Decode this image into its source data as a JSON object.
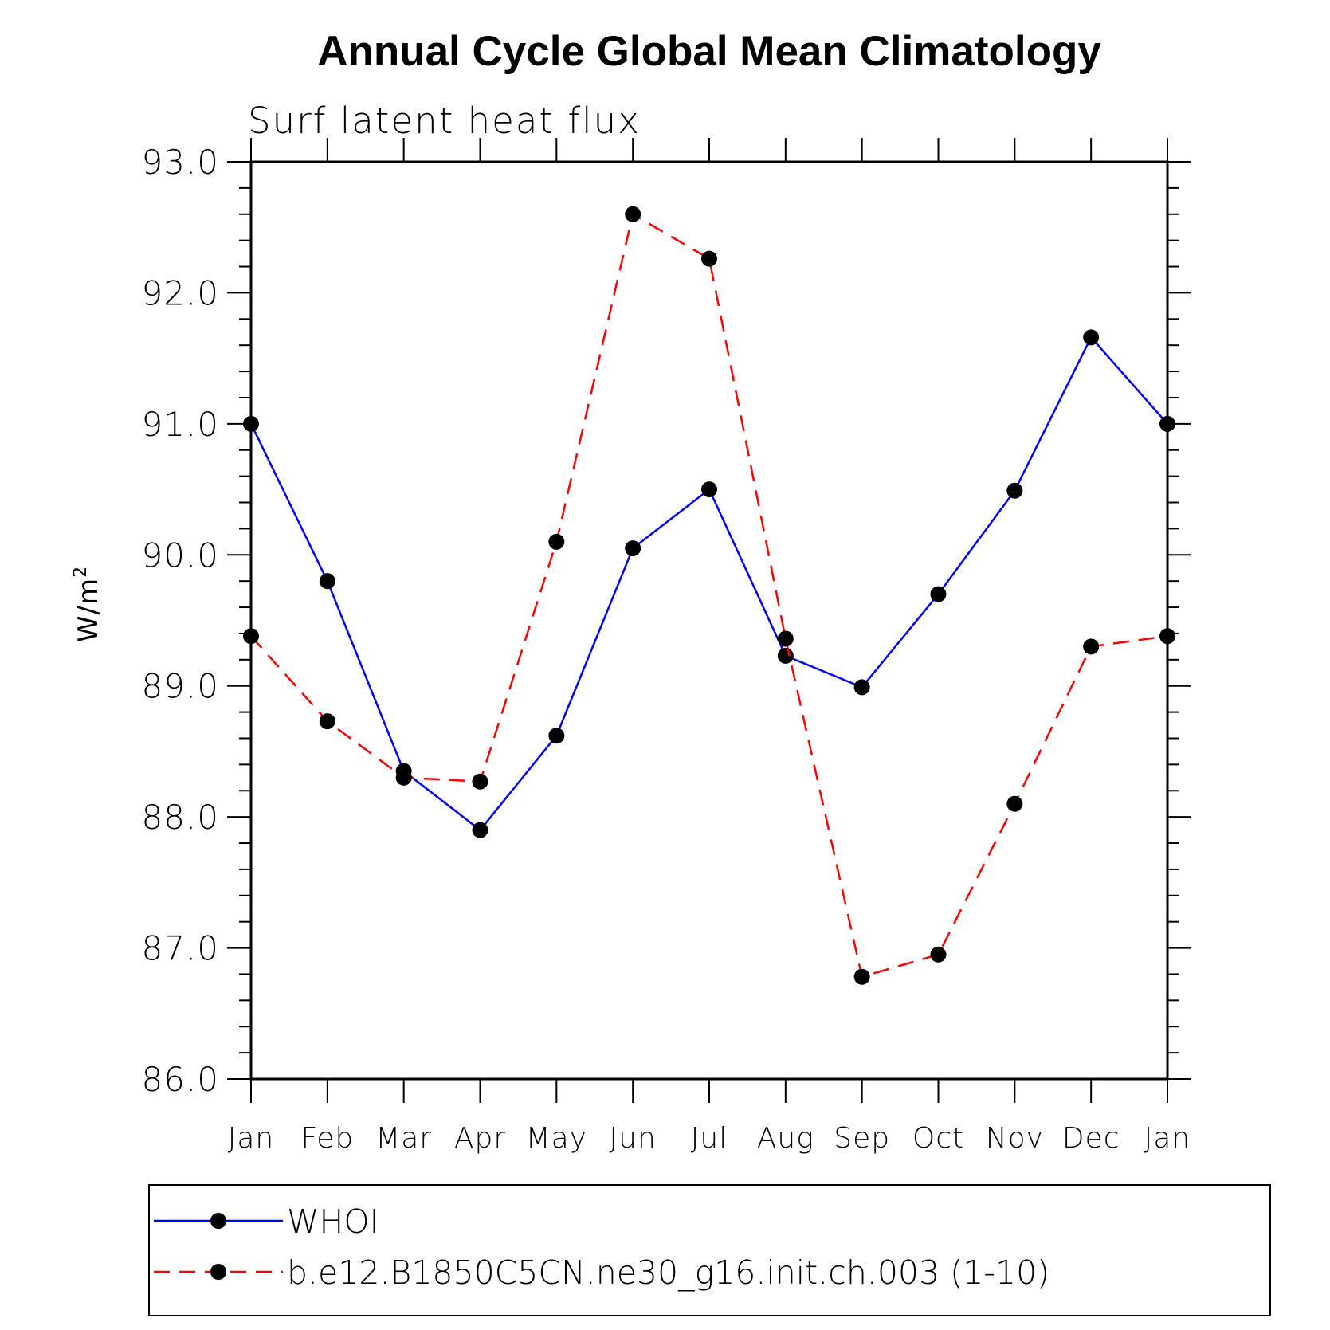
{
  "chart_data": {
    "type": "line",
    "title": "Annual Cycle Global Mean Climatology",
    "subtitle": "Surf latent heat flux",
    "ylabel": "W/m",
    "ylabel_superscript": "2",
    "ylim": [
      86.0,
      93.0
    ],
    "yticks": [
      "86.0",
      "87.0",
      "88.0",
      "89.0",
      "90.0",
      "91.0",
      "92.0",
      "93.0"
    ],
    "categories": [
      "Jan",
      "Feb",
      "Mar",
      "Apr",
      "May",
      "Jun",
      "Jul",
      "Aug",
      "Sep",
      "Oct",
      "Nov",
      "Dec",
      "Jan"
    ],
    "series": [
      {
        "name": "WHOI",
        "color": "#0000ff",
        "style": "solid",
        "marker": "filled-circle",
        "values": [
          91.0,
          89.8,
          88.35,
          87.9,
          88.62,
          90.05,
          90.5,
          89.23,
          88.99,
          89.7,
          90.49,
          91.66,
          91.0
        ]
      },
      {
        "name": "b.e12.B1850C5CN.ne30_g16.init.ch.003 (1-10)",
        "color": "#ff0000",
        "style": "dashed",
        "marker": "filled-circle",
        "values": [
          89.38,
          88.73,
          88.3,
          88.27,
          90.1,
          92.6,
          92.26,
          89.36,
          86.78,
          86.95,
          88.1,
          89.3,
          89.38
        ]
      }
    ],
    "grid": false,
    "legend_placement": "bottom"
  }
}
